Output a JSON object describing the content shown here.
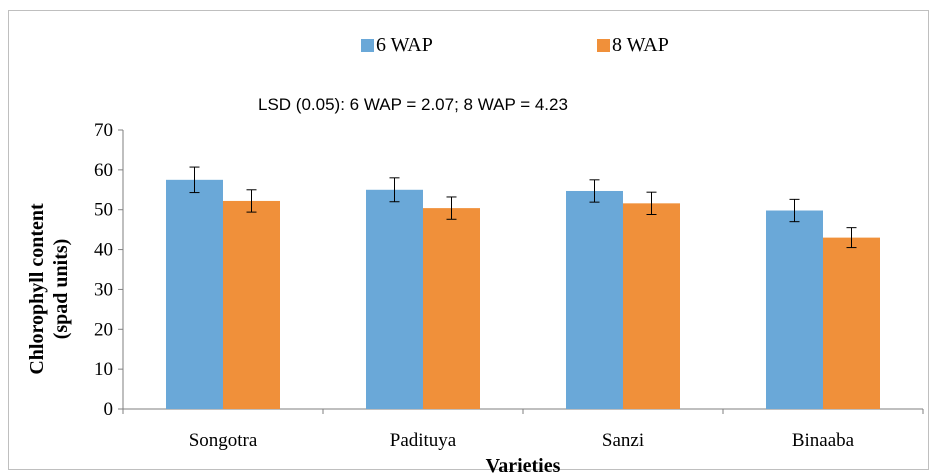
{
  "chart_data": {
    "type": "bar",
    "title": "",
    "annotation": "LSD (0.05): 6 WAP = 2.07; 8 WAP = 4.23",
    "xlabel": "Varieties",
    "ylabel_line1": "Chlorophyll content",
    "ylabel_line2": "(spad units)",
    "categories": [
      "Songotra",
      "Padituya",
      "Sanzi",
      "Binaaba"
    ],
    "series": [
      {
        "name": "6 WAP",
        "color": "#6aa8d8",
        "values": [
          57.5,
          55.0,
          54.7,
          49.8
        ],
        "errors": [
          3.2,
          3.0,
          2.8,
          2.8
        ]
      },
      {
        "name": "8 WAP",
        "color": "#f0903a",
        "values": [
          52.2,
          50.4,
          51.6,
          43.0
        ],
        "errors": [
          2.8,
          2.8,
          2.8,
          2.5
        ]
      }
    ],
    "yticks": [
      "0",
      "10",
      "20",
      "30",
      "40",
      "50",
      "60",
      "70"
    ],
    "ylim": [
      0,
      70
    ],
    "grid": false,
    "legend_position": "top-center",
    "error_bars": true
  }
}
